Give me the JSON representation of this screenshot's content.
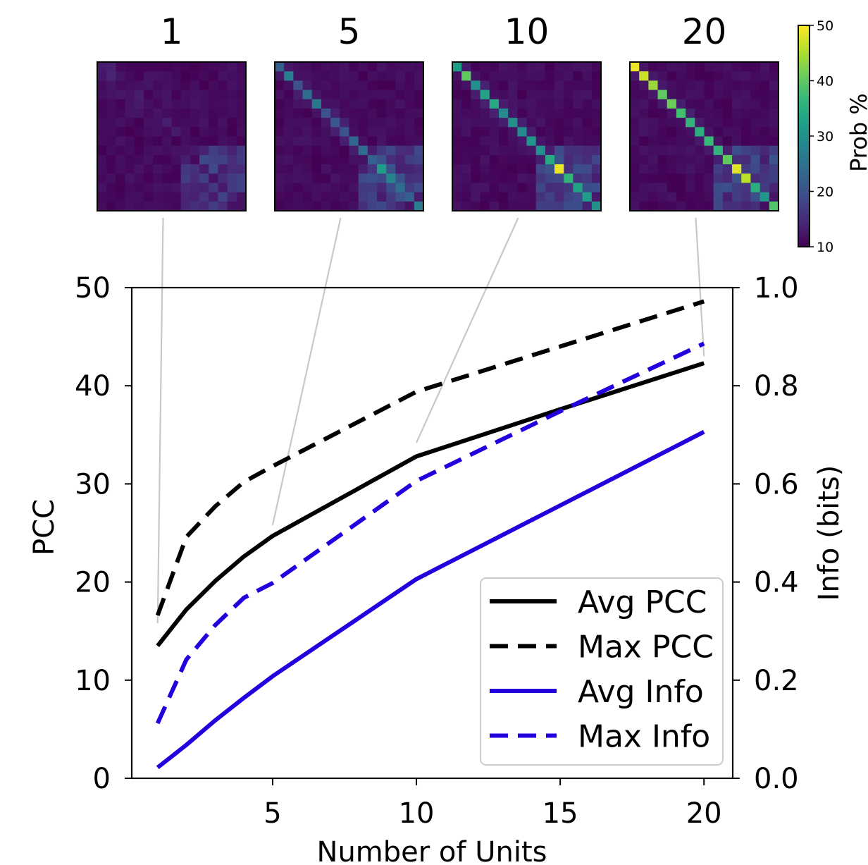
{
  "chart_data": {
    "type": "line",
    "xlabel": "Number of Units",
    "ylabel": "PCC",
    "y2label": "Info (bits)",
    "xlim": [
      0.1,
      21
    ],
    "ylim": [
      0,
      50
    ],
    "y2lim": [
      0.0,
      1.0
    ],
    "xticks": [
      5,
      10,
      15,
      20
    ],
    "yticks": [
      0,
      10,
      20,
      30,
      40,
      50
    ],
    "y2ticks": [
      "0.0",
      "0.2",
      "0.4",
      "0.6",
      "0.8",
      "1.0"
    ],
    "legend_position": "lower-right",
    "series": [
      {
        "name": "Avg PCC",
        "axis": "left",
        "color": "#000000",
        "style": "solid",
        "x": [
          1,
          2,
          3,
          4,
          5,
          10,
          15,
          20
        ],
        "y": [
          13.5,
          17.2,
          20.1,
          22.6,
          24.7,
          32.8,
          37.6,
          42.3
        ]
      },
      {
        "name": "Max PCC",
        "axis": "left",
        "color": "#000000",
        "style": "dashed",
        "x": [
          1,
          2,
          3,
          4,
          5,
          10,
          15,
          20
        ],
        "y": [
          16.6,
          24.6,
          27.7,
          30.2,
          31.8,
          39.4,
          44.0,
          48.6
        ]
      },
      {
        "name": "Avg Info",
        "axis": "right",
        "color": "#2200dd",
        "style": "solid",
        "x": [
          1,
          2,
          3,
          4,
          5,
          10,
          15,
          20
        ],
        "y": [
          0.022,
          0.068,
          0.118,
          0.164,
          0.208,
          0.406,
          0.556,
          0.706
        ]
      },
      {
        "name": "Max Info",
        "axis": "right",
        "color": "#2200dd",
        "style": "dashed",
        "x": [
          1,
          2,
          3,
          4,
          5,
          10,
          15,
          20
        ],
        "y": [
          0.112,
          0.242,
          0.312,
          0.368,
          0.398,
          0.606,
          0.748,
          0.886
        ]
      }
    ],
    "heatmap_insets": [
      {
        "title": "1",
        "units": 1,
        "diagonal": [
          13,
          14,
          11,
          12,
          13,
          11,
          12,
          11,
          10,
          12,
          11,
          13,
          12,
          13,
          14,
          12
        ],
        "anchor_x": 1,
        "anchor_y": 15.8
      },
      {
        "title": "5",
        "units": 5,
        "diagonal": [
          22,
          27,
          20,
          24,
          26,
          20,
          21,
          20,
          23,
          24,
          22,
          32,
          28,
          24,
          22,
          27
        ],
        "anchor_x": 5,
        "anchor_y": 25.8
      },
      {
        "title": "10",
        "units": 10,
        "diagonal": [
          32,
          40,
          30,
          33,
          34,
          29,
          30,
          29,
          31,
          30,
          34,
          49,
          36,
          33,
          32,
          30
        ],
        "anchor_x": 10,
        "anchor_y": 34.2
      },
      {
        "title": "20",
        "units": 20,
        "diagonal": [
          49,
          47,
          44,
          40,
          41,
          38,
          36,
          35,
          37,
          36,
          40,
          48,
          46,
          35,
          31,
          39
        ],
        "anchor_x": 20,
        "anchor_y": 43.0
      }
    ],
    "colorbar": {
      "label": "Prob %",
      "colormap": "viridis",
      "range": [
        10,
        50
      ],
      "ticks": [
        "10",
        "20",
        "30",
        "40",
        "50"
      ]
    }
  }
}
